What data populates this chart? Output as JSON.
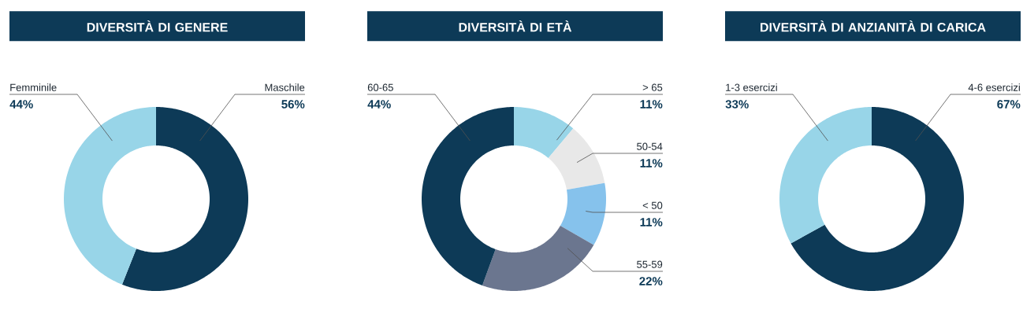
{
  "chart_data": [
    {
      "type": "donut",
      "title": "DIVERSITÀ DI GENERE",
      "categories": [
        "Maschile",
        "Femminile"
      ],
      "values": [
        56,
        44
      ],
      "colors": [
        "#0d3a57",
        "#98d5e8"
      ],
      "value_labels": [
        "56%",
        "44%"
      ]
    },
    {
      "type": "donut",
      "title": "DIVERSITÀ DI ETÀ",
      "categories": [
        "> 65",
        "50-54",
        "< 50",
        "55-59",
        "60-65"
      ],
      "values": [
        11,
        11,
        11,
        22,
        44
      ],
      "colors": [
        "#98d5e8",
        "#e8e8e8",
        "#86c2ec",
        "#6b768f",
        "#0d3a57"
      ],
      "value_labels": [
        "11%",
        "11%",
        "11%",
        "22%",
        "44%"
      ]
    },
    {
      "type": "donut",
      "title": "DIVERSITÀ DI ANZIANITÀ DI CARICA",
      "categories": [
        "4-6 esercizi",
        "1-3 esercizi"
      ],
      "values": [
        67,
        33
      ],
      "colors": [
        "#0d3a57",
        "#98d5e8"
      ],
      "value_labels": [
        "67%",
        "33%"
      ]
    }
  ]
}
